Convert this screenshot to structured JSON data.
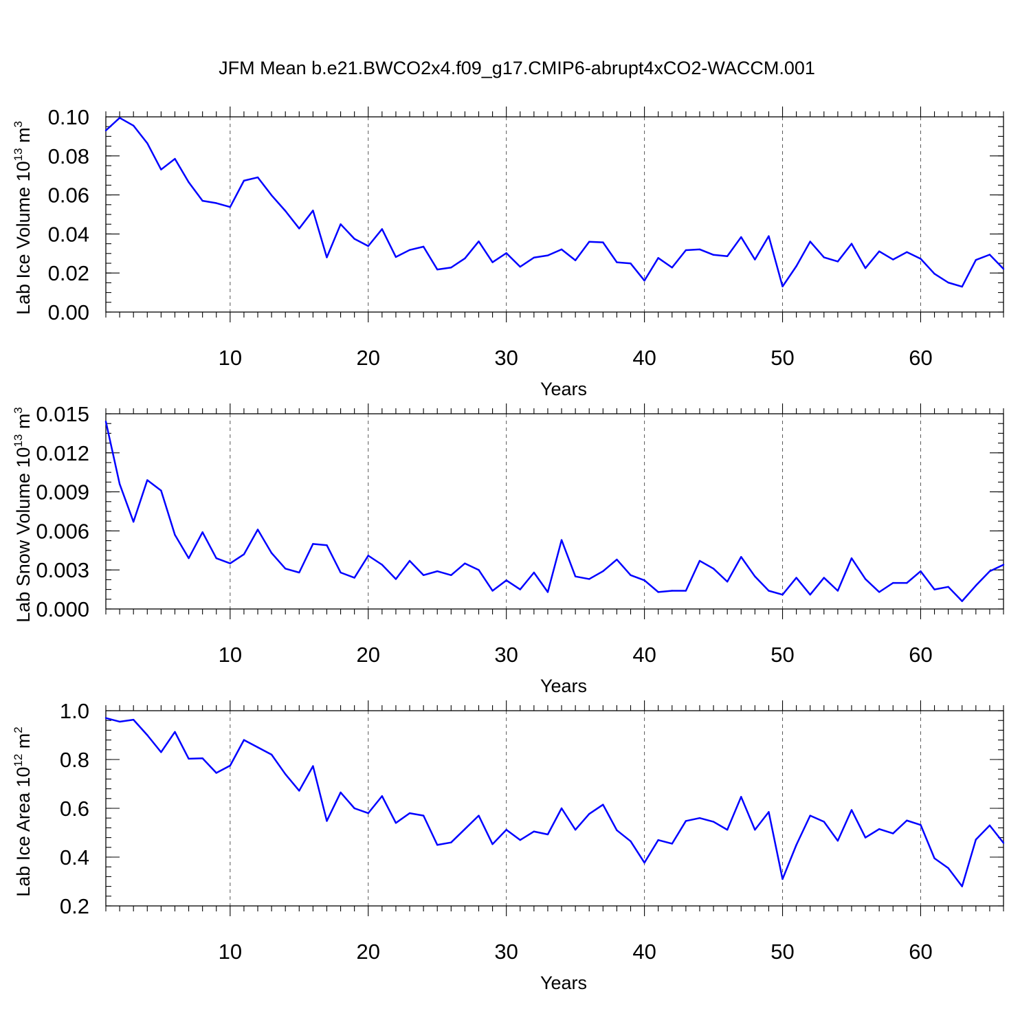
{
  "figure_title": "JFM Mean b.e21.BWCO2x4.f09_g17.CMIP6-abrupt4xCO2-WACCM.001",
  "chart_data": [
    {
      "type": "line",
      "title": "JFM Mean b.e21.BWCO2x4.f09_g17.CMIP6-abrupt4xCO2-WACCM.001",
      "xlabel": "Years",
      "ylabel_main": "Lab Ice Volume 10",
      "ylabel_sup": "13",
      "ylabel_unit": " m",
      "ylabel_unit_sup": "3",
      "xlim": [
        1,
        66
      ],
      "ylim": [
        0,
        0.1
      ],
      "xticks": [
        10,
        20,
        30,
        40,
        50,
        60
      ],
      "xtick_labels": [
        "10",
        "20",
        "30",
        "40",
        "50",
        "60"
      ],
      "yticks": [
        0,
        0.02,
        0.04,
        0.06,
        0.08,
        0.1
      ],
      "ytick_labels": [
        "0.00",
        "0.02",
        "0.04",
        "0.06",
        "0.08",
        "0.10"
      ],
      "yminor_step": 0.005,
      "grid": "vertical dashed at major x ticks",
      "line_color": "#0000ff",
      "x_start": 1,
      "values": [
        0.093,
        0.0995,
        0.0955,
        0.0865,
        0.073,
        0.0785,
        0.0665,
        0.057,
        0.0558,
        0.0538,
        0.0673,
        0.069,
        0.0598,
        0.0518,
        0.0428,
        0.052,
        0.028,
        0.045,
        0.0375,
        0.0338,
        0.0425,
        0.0282,
        0.0318,
        0.0335,
        0.0218,
        0.0228,
        0.0275,
        0.0362,
        0.0255,
        0.0302,
        0.0232,
        0.0279,
        0.029,
        0.0321,
        0.0265,
        0.036,
        0.0357,
        0.0255,
        0.0249,
        0.0161,
        0.0277,
        0.0228,
        0.0317,
        0.0321,
        0.0293,
        0.0286,
        0.0384,
        0.0269,
        0.0389,
        0.0131,
        0.0235,
        0.0361,
        0.028,
        0.0259,
        0.035,
        0.0225,
        0.0311,
        0.0269,
        0.0307,
        0.0273,
        0.0196,
        0.0151,
        0.013,
        0.0267,
        0.0294,
        0.0221
      ]
    },
    {
      "type": "line",
      "xlabel": "Years",
      "ylabel_main": "Lab Snow Volume 10",
      "ylabel_sup": "13",
      "ylabel_unit": " m",
      "ylabel_unit_sup": "3",
      "xlim": [
        1,
        66
      ],
      "ylim": [
        0,
        0.015
      ],
      "xticks": [
        10,
        20,
        30,
        40,
        50,
        60
      ],
      "xtick_labels": [
        "10",
        "20",
        "30",
        "40",
        "50",
        "60"
      ],
      "yticks": [
        0,
        0.003,
        0.006,
        0.009,
        0.012,
        0.015
      ],
      "ytick_labels": [
        "0.000",
        "0.003",
        "0.006",
        "0.009",
        "0.012",
        "0.015"
      ],
      "yminor_step": 0.00075,
      "grid": "vertical dashed at major x ticks",
      "line_color": "#0000ff",
      "x_start": 1,
      "values": [
        0.0144,
        0.0096,
        0.0067,
        0.0099,
        0.0091,
        0.0057,
        0.0039,
        0.0059,
        0.0039,
        0.0035,
        0.0042,
        0.0061,
        0.0043,
        0.0031,
        0.0028,
        0.005,
        0.0049,
        0.0028,
        0.0024,
        0.0041,
        0.0034,
        0.0023,
        0.0037,
        0.0026,
        0.0029,
        0.0026,
        0.0035,
        0.003,
        0.0014,
        0.0022,
        0.0015,
        0.0028,
        0.0013,
        0.0053,
        0.0025,
        0.0023,
        0.0029,
        0.0038,
        0.0026,
        0.0022,
        0.0013,
        0.0014,
        0.0014,
        0.0037,
        0.0031,
        0.0021,
        0.004,
        0.0025,
        0.0014,
        0.0011,
        0.0024,
        0.0011,
        0.0024,
        0.0014,
        0.0039,
        0.0023,
        0.0013,
        0.002,
        0.002,
        0.0029,
        0.0015,
        0.0017,
        0.0006,
        0.0018,
        0.0029,
        0.0034
      ]
    },
    {
      "type": "line",
      "xlabel": "Years",
      "ylabel_main": "Lab Ice Area 10",
      "ylabel_sup": "12",
      "ylabel_unit": " m",
      "ylabel_unit_sup": "2",
      "xlim": [
        1,
        66
      ],
      "ylim": [
        0.2,
        1.0
      ],
      "xticks": [
        10,
        20,
        30,
        40,
        50,
        60
      ],
      "xtick_labels": [
        "10",
        "20",
        "30",
        "40",
        "50",
        "60"
      ],
      "yticks": [
        0.2,
        0.4,
        0.6,
        0.8,
        1.0
      ],
      "ytick_labels": [
        "0.2",
        "0.4",
        "0.6",
        "0.8",
        "1.0"
      ],
      "yminor_step": 0.04,
      "grid": "vertical dashed at major x ticks",
      "line_color": "#0000ff",
      "x_start": 1,
      "values": [
        0.97,
        0.955,
        0.963,
        0.9,
        0.83,
        0.913,
        0.803,
        0.805,
        0.745,
        0.775,
        0.88,
        0.85,
        0.82,
        0.74,
        0.672,
        0.773,
        0.548,
        0.665,
        0.6,
        0.58,
        0.65,
        0.54,
        0.58,
        0.57,
        0.45,
        0.46,
        0.515,
        0.57,
        0.453,
        0.512,
        0.47,
        0.505,
        0.493,
        0.6,
        0.512,
        0.577,
        0.615,
        0.51,
        0.465,
        0.377,
        0.47,
        0.455,
        0.548,
        0.56,
        0.545,
        0.512,
        0.647,
        0.512,
        0.585,
        0.31,
        0.45,
        0.57,
        0.545,
        0.467,
        0.593,
        0.48,
        0.515,
        0.497,
        0.55,
        0.532,
        0.395,
        0.355,
        0.28,
        0.472,
        0.53,
        0.458
      ]
    }
  ]
}
